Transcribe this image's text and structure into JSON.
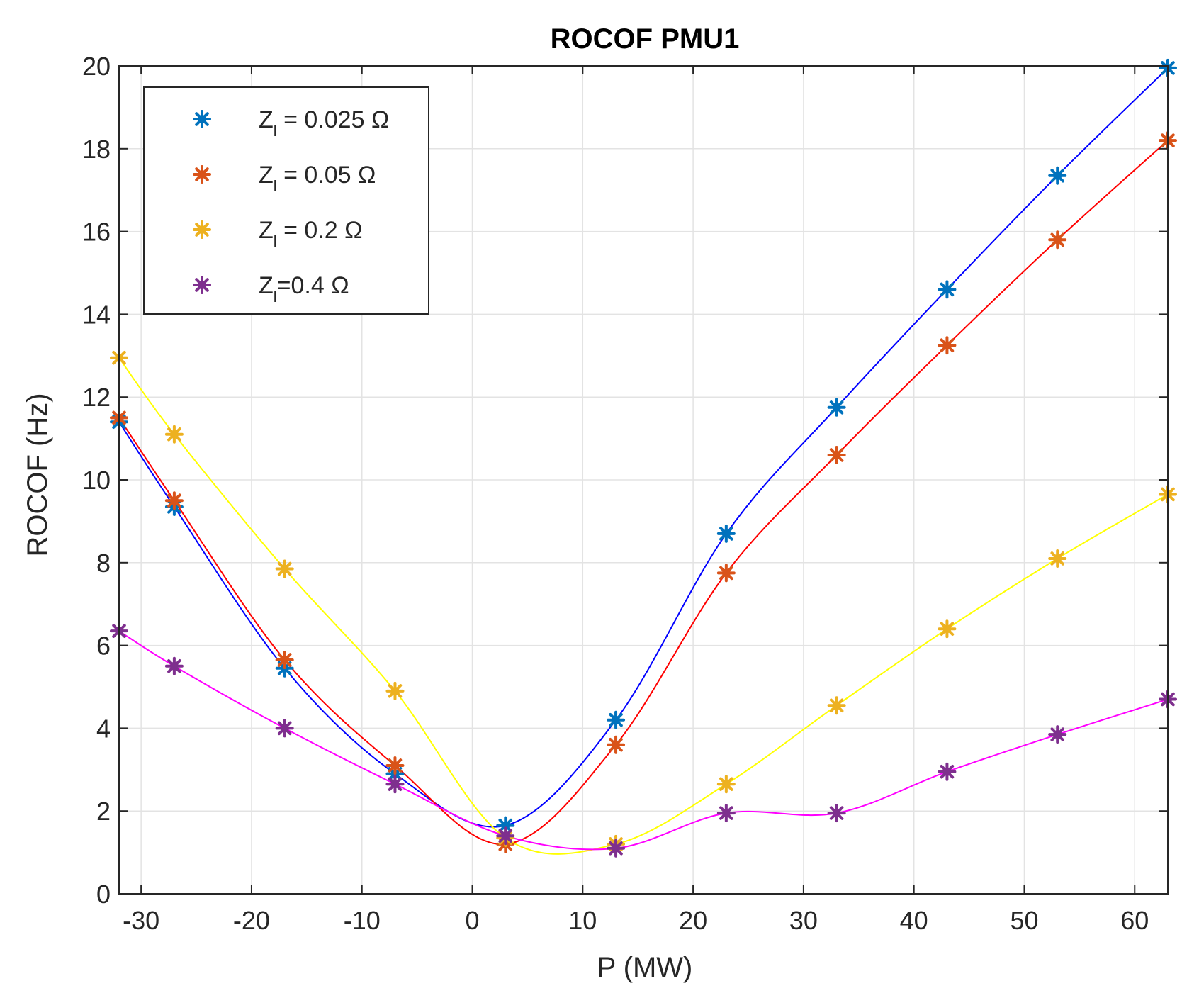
{
  "chart_data": {
    "type": "line",
    "title": "ROCOF PMU1",
    "xlabel": "P (MW)",
    "ylabel": "ROCOF (Hz)",
    "xlim": [
      -32,
      63
    ],
    "ylim": [
      0,
      20
    ],
    "xticks": [
      -30,
      -20,
      -10,
      0,
      10,
      20,
      30,
      40,
      50,
      60
    ],
    "yticks": [
      0,
      2,
      4,
      6,
      8,
      10,
      12,
      14,
      16,
      18,
      20
    ],
    "grid": true,
    "legend_position": "top-left",
    "x": [
      -32,
      -27,
      -17,
      -7,
      3,
      13,
      23,
      33,
      43,
      53,
      63
    ],
    "series": [
      {
        "name": "Z_l = 0.025 Ω",
        "legend_main": "Z",
        "legend_sub": "l",
        "legend_rest": " = 0.025 Ω",
        "marker_color": "#0072BD",
        "line_color": "#0000FF",
        "values": [
          11.4,
          9.35,
          5.45,
          2.9,
          1.65,
          4.2,
          8.7,
          11.75,
          14.6,
          17.35,
          19.95
        ]
      },
      {
        "name": "Z_l = 0.05 Ω",
        "legend_main": "Z",
        "legend_sub": "l",
        "legend_rest": " = 0.05 Ω",
        "marker_color": "#D95319",
        "line_color": "#FF0000",
        "values": [
          11.5,
          9.5,
          5.65,
          3.1,
          1.2,
          3.6,
          7.75,
          10.6,
          13.25,
          15.8,
          18.2
        ]
      },
      {
        "name": "Z_l = 0.2 Ω",
        "legend_main": "Z",
        "legend_sub": "l",
        "legend_rest": " = 0.2 Ω",
        "marker_color": "#EDB120",
        "line_color": "#FFFF00",
        "values": [
          12.95,
          11.1,
          7.85,
          4.9,
          1.35,
          1.2,
          2.65,
          4.55,
          6.4,
          8.1,
          9.65
        ]
      },
      {
        "name": "Z_l=0.4 Ω",
        "legend_main": "Z",
        "legend_sub": "l",
        "legend_rest": "=0.4 Ω",
        "marker_color": "#7E2F8E",
        "line_color": "#FF00FF",
        "values": [
          6.35,
          5.5,
          4.0,
          2.65,
          1.4,
          1.1,
          1.95,
          1.95,
          2.95,
          3.85,
          4.7
        ]
      }
    ]
  }
}
